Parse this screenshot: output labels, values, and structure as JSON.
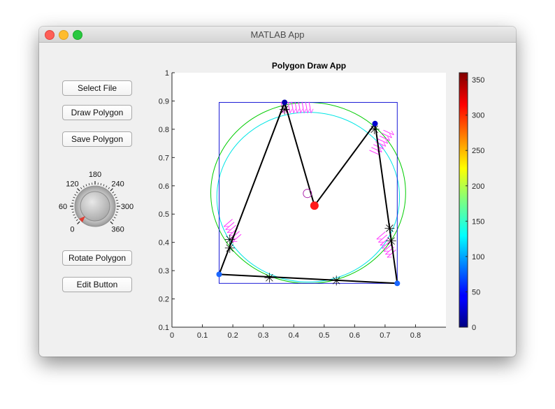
{
  "window": {
    "title": "MATLAB App"
  },
  "buttons": {
    "select_file": "Select File",
    "draw_polygon": "Draw Polygon",
    "save_polygon": "Save Polygon",
    "rotate_polygon": "Rotate Polygon",
    "edit_button": "Edit Button"
  },
  "knob": {
    "tick_labels": [
      "0",
      "60",
      "120",
      "180",
      "240",
      "300",
      "360"
    ],
    "value": 0,
    "limits": [
      0,
      360
    ]
  },
  "colors": {
    "accent": "#0072bd",
    "knob_pointer": "#e03c31",
    "close": "#fe5f57",
    "minimize": "#febc2e",
    "maximize": "#28c840"
  },
  "chart_data": {
    "type": "scatter",
    "title": "Polygon Draw App",
    "xlabel": "",
    "ylabel": "",
    "xlim": [
      0,
      0.9
    ],
    "ylim": [
      0.1,
      1
    ],
    "xticks": [
      "0",
      "0.1",
      "0.2",
      "0.3",
      "0.4",
      "0.5",
      "0.6",
      "0.7",
      "0.8"
    ],
    "yticks": [
      "0.1",
      "0.2",
      "0.3",
      "0.4",
      "0.5",
      "0.6",
      "0.7",
      "0.8",
      "0.9",
      "1"
    ],
    "colorbar": {
      "limits": [
        0,
        360
      ],
      "ticks": [
        "0",
        "50",
        "100",
        "150",
        "200",
        "250",
        "300",
        "350"
      ],
      "colormap": "jet"
    },
    "polygon": {
      "vertices": [
        {
          "x": 0.37,
          "y": 0.895
        },
        {
          "x": 0.468,
          "y": 0.53
        },
        {
          "x": 0.667,
          "y": 0.82
        },
        {
          "x": 0.74,
          "y": 0.255
        },
        {
          "x": 0.155,
          "y": 0.287
        }
      ],
      "vertex_colors": [
        "#0000aa",
        "#ff1a1a",
        "#0000cc",
        "#1a66ff",
        "#1a66ff"
      ]
    },
    "bounding_box": {
      "xmin": 0.155,
      "xmax": 0.74,
      "ymin": 0.255,
      "ymax": 0.895
    },
    "circles": [
      {
        "cx": 0.4475,
        "cy": 0.575,
        "r": 0.32,
        "color": "#00cc00"
      },
      {
        "cx": 0.4475,
        "cy": 0.56,
        "r": 0.3,
        "color": "#00e5e5"
      }
    ],
    "star_markers": [
      {
        "x": 0.37,
        "y": 0.87
      },
      {
        "x": 0.19,
        "y": 0.41
      },
      {
        "x": 0.19,
        "y": 0.38
      },
      {
        "x": 0.32,
        "y": 0.275
      },
      {
        "x": 0.54,
        "y": 0.265
      },
      {
        "x": 0.715,
        "y": 0.45
      },
      {
        "x": 0.72,
        "y": 0.405
      },
      {
        "x": 0.665,
        "y": 0.8
      }
    ],
    "open_circle_marker": {
      "x": 0.445,
      "y": 0.573,
      "color": "#aa22aa"
    },
    "magenta_arrow_groups": [
      {
        "cx": 0.41,
        "cy": 0.877,
        "n": 9,
        "angle": 0
      },
      {
        "cx": 0.69,
        "cy": 0.755,
        "n": 8,
        "angle": -55
      },
      {
        "cx": 0.2,
        "cy": 0.44,
        "n": 6,
        "angle": 60
      },
      {
        "cx": 0.705,
        "cy": 0.39,
        "n": 7,
        "angle": 60
      }
    ]
  }
}
